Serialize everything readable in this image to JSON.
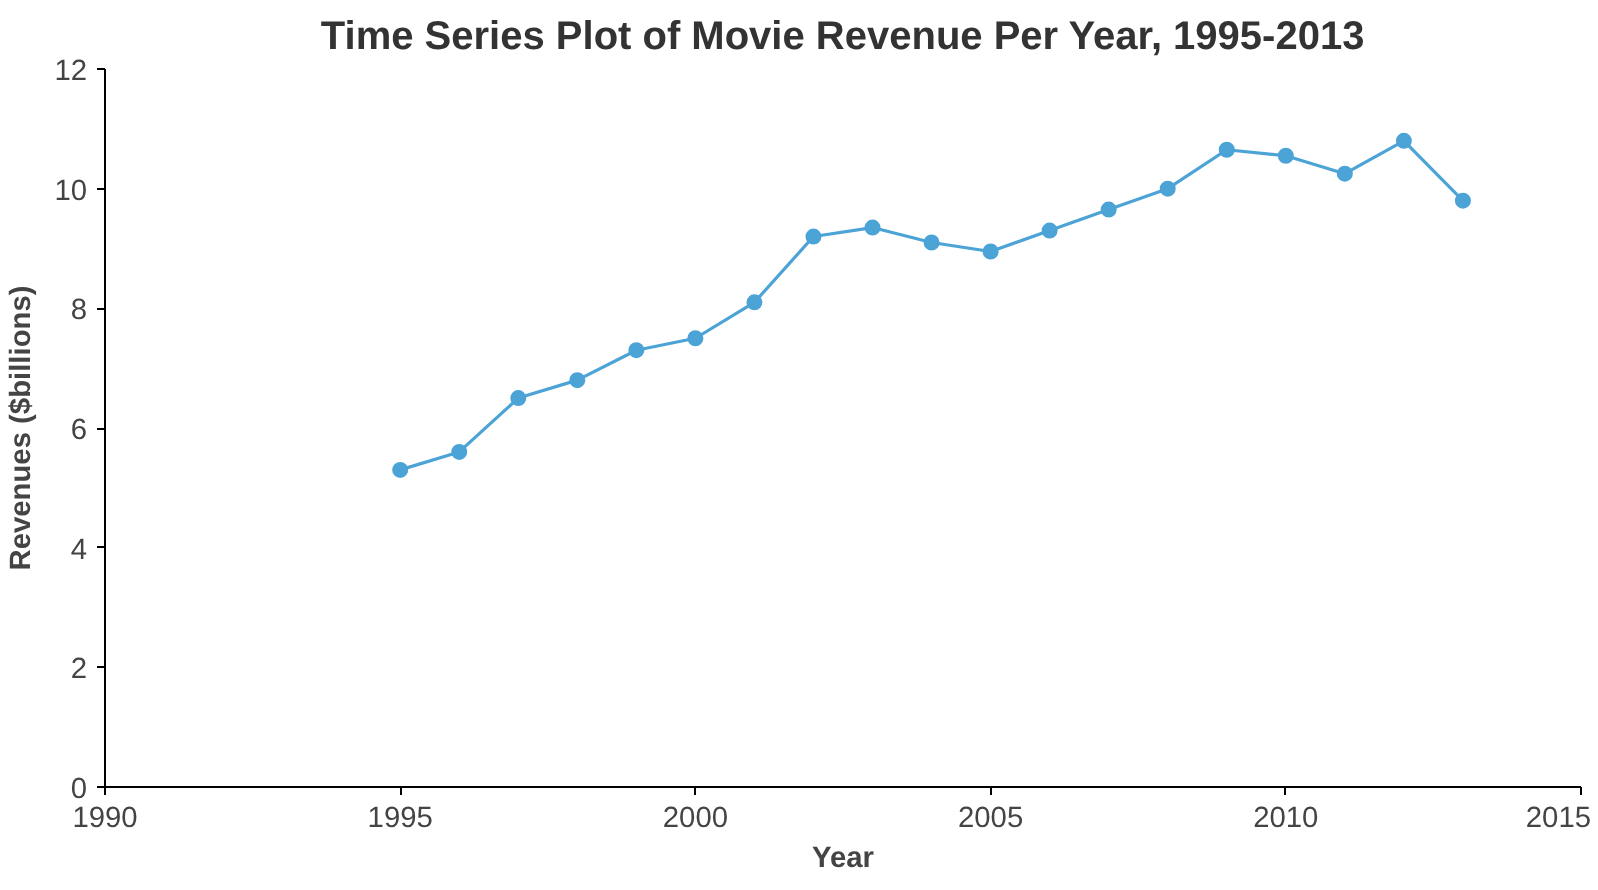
{
  "chart_data": {
    "type": "line",
    "title": "Time Series Plot of Movie Revenue Per Year, 1995-2013",
    "xlabel": "Year",
    "ylabel": "Revenues ($billions)",
    "x": [
      1995,
      1996,
      1997,
      1998,
      1999,
      2000,
      2001,
      2002,
      2003,
      2004,
      2005,
      2006,
      2007,
      2008,
      2009,
      2010,
      2011,
      2012,
      2013
    ],
    "series": [
      {
        "color": "#4ba3d6",
        "values": [
          5.3,
          5.6,
          6.5,
          6.8,
          7.3,
          7.5,
          8.1,
          9.2,
          9.35,
          9.1,
          8.95,
          9.3,
          9.65,
          10.0,
          10.65,
          10.55,
          10.25,
          10.8,
          9.8
        ]
      }
    ],
    "xlim": [
      1990,
      2015
    ],
    "xticks": [
      1990,
      1995,
      2000,
      2005,
      2010,
      2015
    ],
    "ylim": [
      0,
      12
    ],
    "yticks": [
      0,
      2,
      4,
      6,
      8,
      10,
      12
    ],
    "grid": false,
    "marker": "circle",
    "line_style": "solid"
  }
}
